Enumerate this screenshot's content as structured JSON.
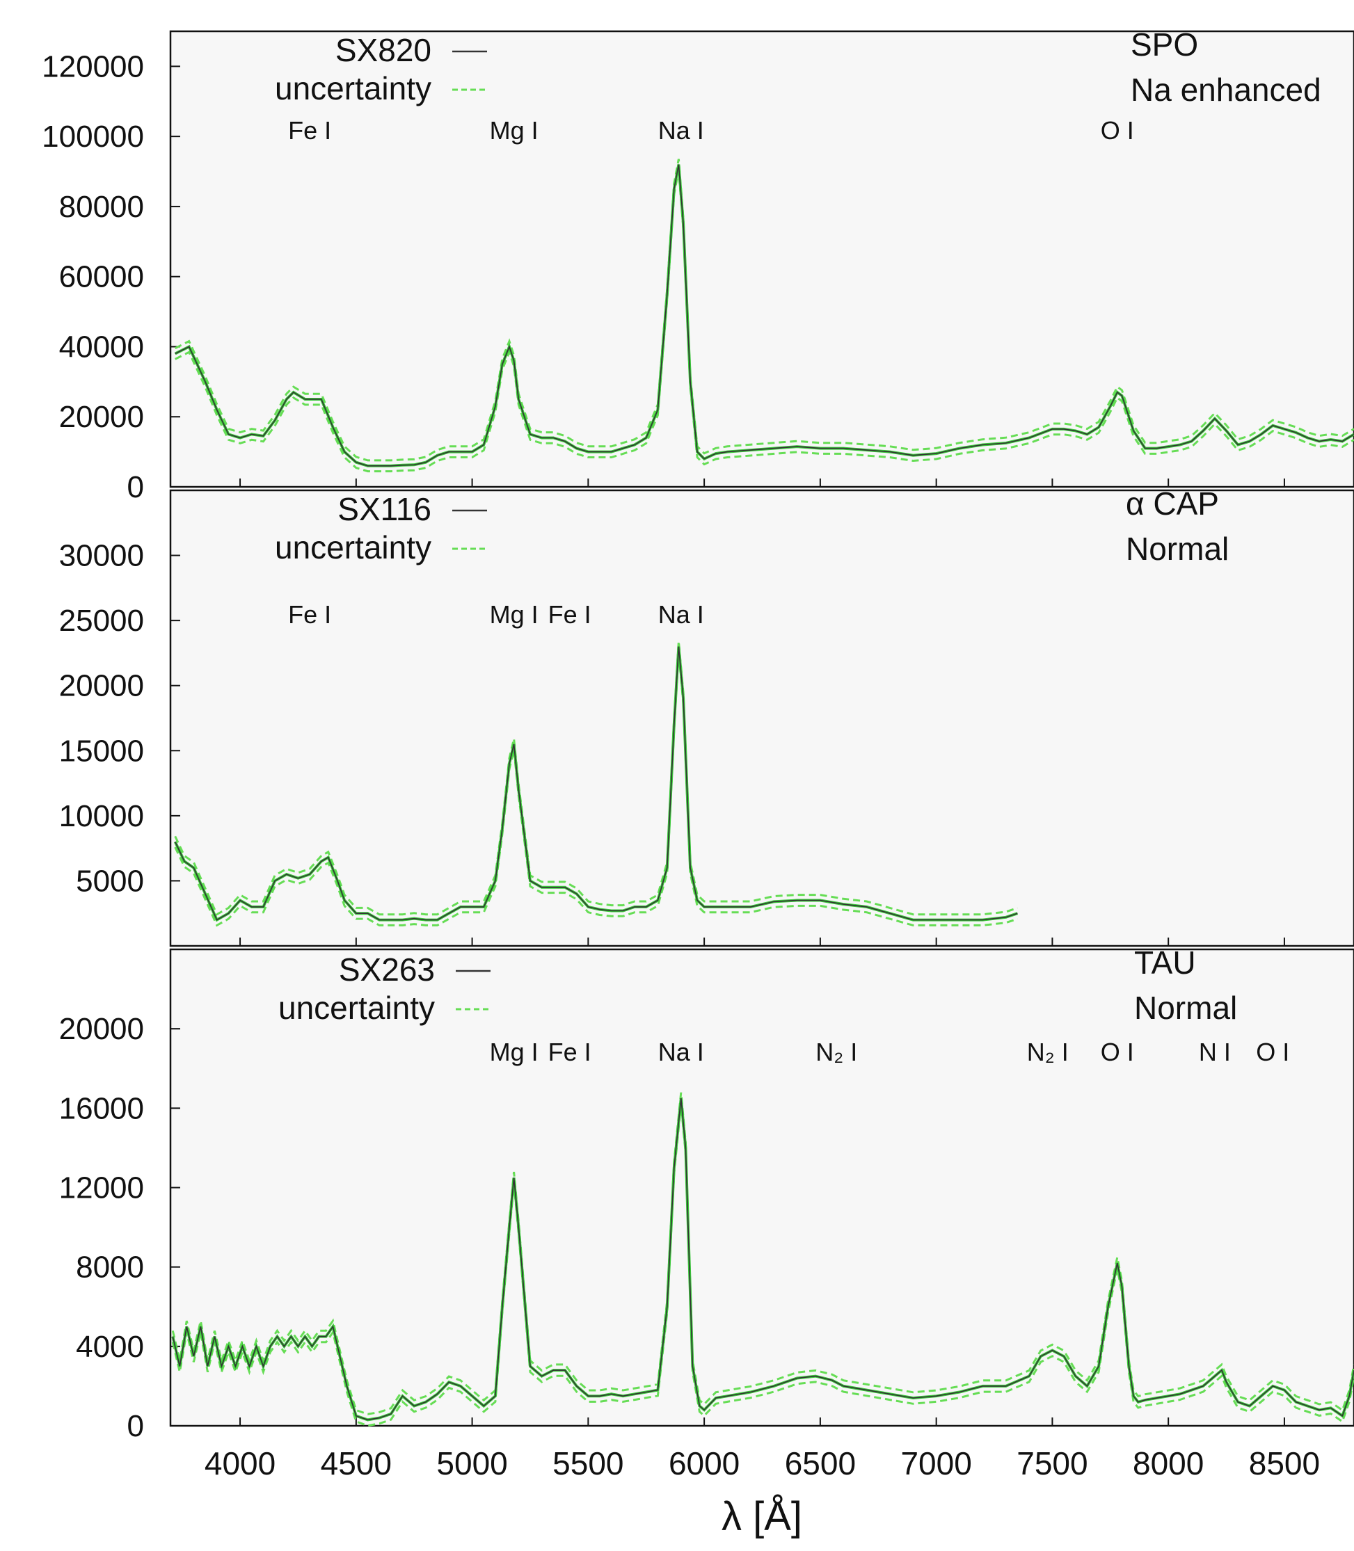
{
  "chart_data": [
    {
      "type": "line",
      "panel": "top",
      "title": "",
      "xlabel": "",
      "ylabel": "",
      "xlim": [
        3700,
        8800
      ],
      "ylim": [
        0,
        130000
      ],
      "y_ticks": [
        "0",
        "20000",
        "40000",
        "60000",
        "80000",
        "100000",
        "120000"
      ],
      "legend": [
        {
          "label": "SX820",
          "style": "solid",
          "color": "#333333"
        },
        {
          "label": "uncertainty",
          "style": "dashed",
          "color": "#66dd55"
        }
      ],
      "legend_placement": "top-left",
      "annotation_lines": [
        "SPO",
        "Na enhanced"
      ],
      "line_labels": [
        {
          "text": "Fe I",
          "x": 4300
        },
        {
          "text": "Mg I",
          "x": 5180
        },
        {
          "text": "Na I",
          "x": 5900
        },
        {
          "text": "O I",
          "x": 7780
        }
      ],
      "series": [
        {
          "name": "SX820",
          "x": [
            3720,
            3780,
            3850,
            3900,
            3950,
            4000,
            4050,
            4100,
            4150,
            4200,
            4230,
            4280,
            4350,
            4400,
            4450,
            4500,
            4550,
            4600,
            4650,
            4700,
            4750,
            4800,
            4850,
            4900,
            4950,
            5000,
            5050,
            5100,
            5130,
            5160,
            5180,
            5200,
            5250,
            5300,
            5350,
            5400,
            5450,
            5500,
            5550,
            5600,
            5650,
            5700,
            5750,
            5800,
            5840,
            5870,
            5890,
            5910,
            5940,
            5970,
            6000,
            6050,
            6100,
            6200,
            6300,
            6400,
            6500,
            6600,
            6700,
            6800,
            6900,
            7000,
            7100,
            7200,
            7300,
            7400,
            7500,
            7550,
            7600,
            7650,
            7700,
            7750,
            7780,
            7800,
            7850,
            7900,
            7950,
            8000,
            8050,
            8100,
            8150,
            8200,
            8250,
            8300,
            8350,
            8400,
            8450,
            8500,
            8550,
            8600,
            8650,
            8700,
            8750,
            8800
          ],
          "y": [
            38000,
            40000,
            30000,
            22000,
            15000,
            14000,
            15000,
            14500,
            19000,
            25000,
            27000,
            25000,
            25000,
            17000,
            10000,
            7000,
            6000,
            6000,
            6000,
            6200,
            6300,
            7000,
            9000,
            10000,
            10000,
            10000,
            12000,
            23000,
            35000,
            40000,
            36000,
            25000,
            15000,
            14000,
            14000,
            13000,
            11000,
            10000,
            10000,
            10000,
            11000,
            12000,
            14000,
            22000,
            55000,
            85000,
            92000,
            75000,
            30000,
            10000,
            8000,
            9500,
            10000,
            10500,
            11000,
            11500,
            11000,
            11000,
            10500,
            10000,
            9000,
            9500,
            11000,
            12000,
            12500,
            14000,
            16500,
            16500,
            16000,
            15000,
            17000,
            23000,
            27000,
            26000,
            16000,
            11000,
            11000,
            11500,
            12000,
            13000,
            16000,
            19500,
            16000,
            12000,
            13000,
            15000,
            17500,
            16500,
            15500,
            14000,
            13000,
            13500,
            13000,
            15000
          ]
        }
      ]
    },
    {
      "type": "line",
      "panel": "middle",
      "title": "",
      "xlabel": "",
      "ylabel": "",
      "xlim": [
        3700,
        8800
      ],
      "ylim": [
        0,
        35000
      ],
      "y_ticks": [
        "5000",
        "10000",
        "15000",
        "20000",
        "25000",
        "30000"
      ],
      "legend": [
        {
          "label": "SX116",
          "style": "solid",
          "color": "#333333"
        },
        {
          "label": "uncertainty",
          "style": "dashed",
          "color": "#66dd55"
        }
      ],
      "legend_placement": "top-left",
      "annotation_lines": [
        "α CAP",
        "Normal"
      ],
      "line_labels": [
        {
          "text": "Fe I",
          "x": 4300
        },
        {
          "text": "Mg I",
          "x": 5180
        },
        {
          "text": "Fe I",
          "x": 5420
        },
        {
          "text": "Na I",
          "x": 5900
        }
      ],
      "series": [
        {
          "name": "SX116",
          "x": [
            3720,
            3760,
            3800,
            3850,
            3900,
            3950,
            4000,
            4050,
            4100,
            4150,
            4200,
            4250,
            4300,
            4350,
            4380,
            4420,
            4450,
            4500,
            4550,
            4600,
            4650,
            4700,
            4750,
            4800,
            4850,
            4900,
            4950,
            5000,
            5050,
            5100,
            5130,
            5160,
            5180,
            5200,
            5250,
            5300,
            5350,
            5400,
            5450,
            5500,
            5550,
            5600,
            5650,
            5700,
            5750,
            5800,
            5840,
            5870,
            5890,
            5910,
            5940,
            5970,
            6000,
            6100,
            6200,
            6300,
            6400,
            6500,
            6600,
            6700,
            6800,
            6900,
            7000,
            7100,
            7200,
            7300,
            7350
          ],
          "y": [
            8000,
            6500,
            6000,
            4000,
            2000,
            2500,
            3500,
            3000,
            3000,
            5000,
            5500,
            5200,
            5500,
            6500,
            6800,
            5000,
            3500,
            2500,
            2500,
            2000,
            2000,
            2000,
            2100,
            2000,
            2000,
            2500,
            3000,
            3000,
            3000,
            5000,
            9000,
            14000,
            15500,
            12000,
            5000,
            4500,
            4500,
            4500,
            4000,
            3000,
            2800,
            2700,
            2700,
            3000,
            3000,
            3500,
            6000,
            17000,
            23000,
            19000,
            6000,
            3500,
            3000,
            3000,
            3000,
            3400,
            3500,
            3500,
            3200,
            3000,
            2500,
            2000,
            2000,
            2000,
            2000,
            2200,
            2500
          ]
        }
      ]
    },
    {
      "type": "line",
      "panel": "bottom",
      "title": "",
      "xlabel": "λ [Å]",
      "ylabel": "",
      "xlim": [
        3700,
        8800
      ],
      "ylim": [
        0,
        24000
      ],
      "x_ticks": [
        "4000",
        "4500",
        "5000",
        "5500",
        "6000",
        "6500",
        "7000",
        "7500",
        "8000",
        "8500"
      ],
      "y_ticks": [
        "0",
        "4000",
        "8000",
        "12000",
        "16000",
        "20000"
      ],
      "legend": [
        {
          "label": "SX263",
          "style": "solid",
          "color": "#333333"
        },
        {
          "label": "uncertainty",
          "style": "dashed",
          "color": "#66dd55"
        }
      ],
      "legend_placement": "top-left",
      "annotation_lines": [
        "TAU",
        "Normal"
      ],
      "line_labels": [
        {
          "text": "Mg I",
          "x": 5180
        },
        {
          "text": "Fe I",
          "x": 5420
        },
        {
          "text": "Na I",
          "x": 5900
        },
        {
          "text": "N₂ I",
          "x": 6570
        },
        {
          "text": "N₂ I",
          "x": 7480
        },
        {
          "text": "O I",
          "x": 7780
        },
        {
          "text": "N I",
          "x": 8200
        },
        {
          "text": "O I",
          "x": 8450
        }
      ],
      "series": [
        {
          "name": "SX263",
          "x": [
            3710,
            3740,
            3770,
            3800,
            3830,
            3860,
            3890,
            3920,
            3950,
            3980,
            4010,
            4040,
            4070,
            4100,
            4130,
            4160,
            4190,
            4220,
            4250,
            4280,
            4310,
            4340,
            4370,
            4400,
            4430,
            4460,
            4500,
            4550,
            4600,
            4650,
            4700,
            4750,
            4800,
            4850,
            4900,
            4950,
            5000,
            5050,
            5100,
            5130,
            5160,
            5180,
            5200,
            5250,
            5300,
            5350,
            5400,
            5450,
            5500,
            5550,
            5600,
            5650,
            5700,
            5750,
            5800,
            5840,
            5870,
            5900,
            5920,
            5950,
            5980,
            6000,
            6050,
            6100,
            6200,
            6300,
            6400,
            6480,
            6550,
            6600,
            6700,
            6800,
            6900,
            7000,
            7100,
            7200,
            7300,
            7400,
            7450,
            7500,
            7550,
            7600,
            7650,
            7700,
            7740,
            7780,
            7800,
            7830,
            7850,
            7870,
            7900,
            7950,
            8000,
            8050,
            8100,
            8150,
            8200,
            8230,
            8250,
            8300,
            8350,
            8400,
            8450,
            8500,
            8550,
            8600,
            8650,
            8700,
            8750,
            8780,
            8800
          ],
          "y": [
            4500,
            3000,
            5000,
            3500,
            5000,
            3000,
            4500,
            3000,
            4000,
            3000,
            4000,
            3000,
            4000,
            3000,
            4000,
            4500,
            4000,
            4500,
            4000,
            4500,
            4000,
            4500,
            4500,
            5000,
            3500,
            2000,
            500,
            300,
            400,
            600,
            1500,
            1000,
            1200,
            1600,
            2200,
            2000,
            1500,
            1000,
            1500,
            6000,
            10000,
            12500,
            10000,
            3000,
            2500,
            2800,
            2800,
            2000,
            1500,
            1500,
            1600,
            1500,
            1600,
            1700,
            1800,
            6000,
            13000,
            16500,
            14000,
            3000,
            1000,
            800,
            1400,
            1500,
            1700,
            2000,
            2400,
            2500,
            2300,
            2000,
            1800,
            1600,
            1400,
            1500,
            1700,
            2000,
            2000,
            2500,
            3500,
            3800,
            3500,
            2500,
            2000,
            3000,
            6000,
            8200,
            7000,
            3000,
            1500,
            1200,
            1300,
            1400,
            1500,
            1600,
            1800,
            2000,
            2500,
            2800,
            2200,
            1200,
            1000,
            1500,
            2000,
            1800,
            1200,
            1000,
            800,
            900,
            500,
            1500,
            2800
          ]
        }
      ]
    }
  ]
}
